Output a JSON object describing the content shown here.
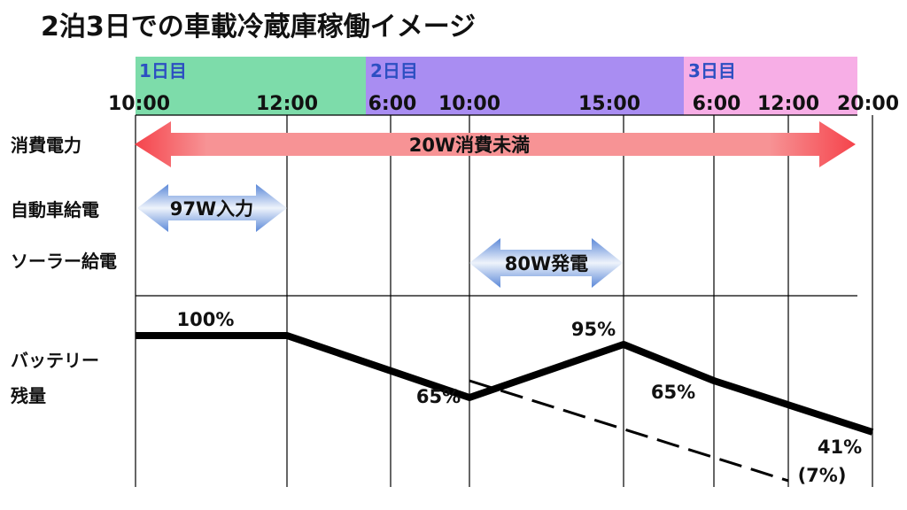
{
  "title": "2泊3日での車載冷蔵庫稼働イメージ",
  "colors": {
    "day1": "#7ddcaa",
    "day2": "#a98df2",
    "day3": "#f7aee6",
    "day_text": "#2d4fc2",
    "consumption": "#f5434b",
    "consumption_light": "#f79395",
    "supply": "#5b88d8",
    "supply_light": "#eef3fb",
    "line": "#000000"
  },
  "days": [
    {
      "label": "1日目",
      "start": "10:00",
      "end": "12:00"
    },
    {
      "label": "2日目",
      "start": "6:00",
      "end": "15:00"
    },
    {
      "label": "3日目",
      "start": "6:00",
      "end": "20:00"
    }
  ],
  "rows": {
    "consumption": "消費電力",
    "car_supply": "自動車給電",
    "solar_supply": "ソーラー給電",
    "battery": [
      "バッテリー",
      "残量"
    ]
  },
  "chart_data": {
    "type": "line",
    "x": [
      "10:00",
      "12:00",
      "6:00",
      "10:00",
      "15:00",
      "6:00",
      "12:00",
      "20:00"
    ],
    "ylim": [
      0,
      100
    ],
    "bars": [
      {
        "row": "消費電力",
        "label": "20W消費未満",
        "from": "10:00",
        "to": "20:00"
      },
      {
        "row": "自動車給電",
        "label": "97W入力",
        "from": "10:00",
        "to": "12:00"
      },
      {
        "row": "ソーラー給電",
        "label": "80W発電",
        "from": "10:00",
        "to": "15:00"
      }
    ],
    "series": [
      {
        "style": "solid",
        "points": [
          {
            "x": "10:00",
            "y": 100,
            "label": "100%"
          },
          {
            "x": "12:00",
            "y": 100
          },
          {
            "x": "10:00",
            "y": 65,
            "label": "65%"
          },
          {
            "x": "15:00",
            "y": 95,
            "label": "95%"
          },
          {
            "x": "6:00",
            "y": 65,
            "label": "65%"
          },
          {
            "x": "20:00",
            "y": 41,
            "label": "41%"
          }
        ]
      },
      {
        "style": "dashed",
        "points": [
          {
            "x": "10:00",
            "y": 65
          },
          {
            "x": "12:00",
            "y": 7,
            "label": "(7%)"
          }
        ]
      }
    ]
  }
}
